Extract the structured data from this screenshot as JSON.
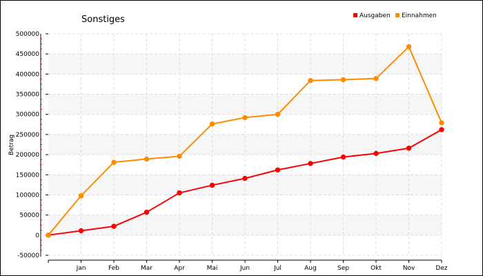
{
  "chart_data": {
    "type": "line",
    "title": "Sonstiges",
    "xlabel": "",
    "ylabel": "Betrag",
    "x": [
      "",
      "Jan",
      "Feb",
      "Mar",
      "Apr",
      "Mai",
      "Jun",
      "Jul",
      "Aug",
      "Sep",
      "Okt",
      "Nov",
      "Dez"
    ],
    "ylim": [
      -50000,
      500000
    ],
    "yticks": [
      -50000,
      0,
      50000,
      100000,
      150000,
      200000,
      250000,
      300000,
      350000,
      400000,
      450000,
      500000
    ],
    "grid": true,
    "legend_position": "top-right",
    "series": [
      {
        "name": "Ausgaben",
        "color": "#ff0000",
        "values": [
          0,
          11000,
          22000,
          57000,
          105000,
          124000,
          141000,
          162000,
          178000,
          194000,
          203000,
          216000,
          262000
        ]
      },
      {
        "name": "Einnahmen",
        "color": "#ff8c00",
        "values": [
          0,
          98000,
          181000,
          189000,
          196000,
          276000,
          292000,
          300000,
          384000,
          386000,
          389000,
          468000,
          279000
        ]
      }
    ]
  }
}
